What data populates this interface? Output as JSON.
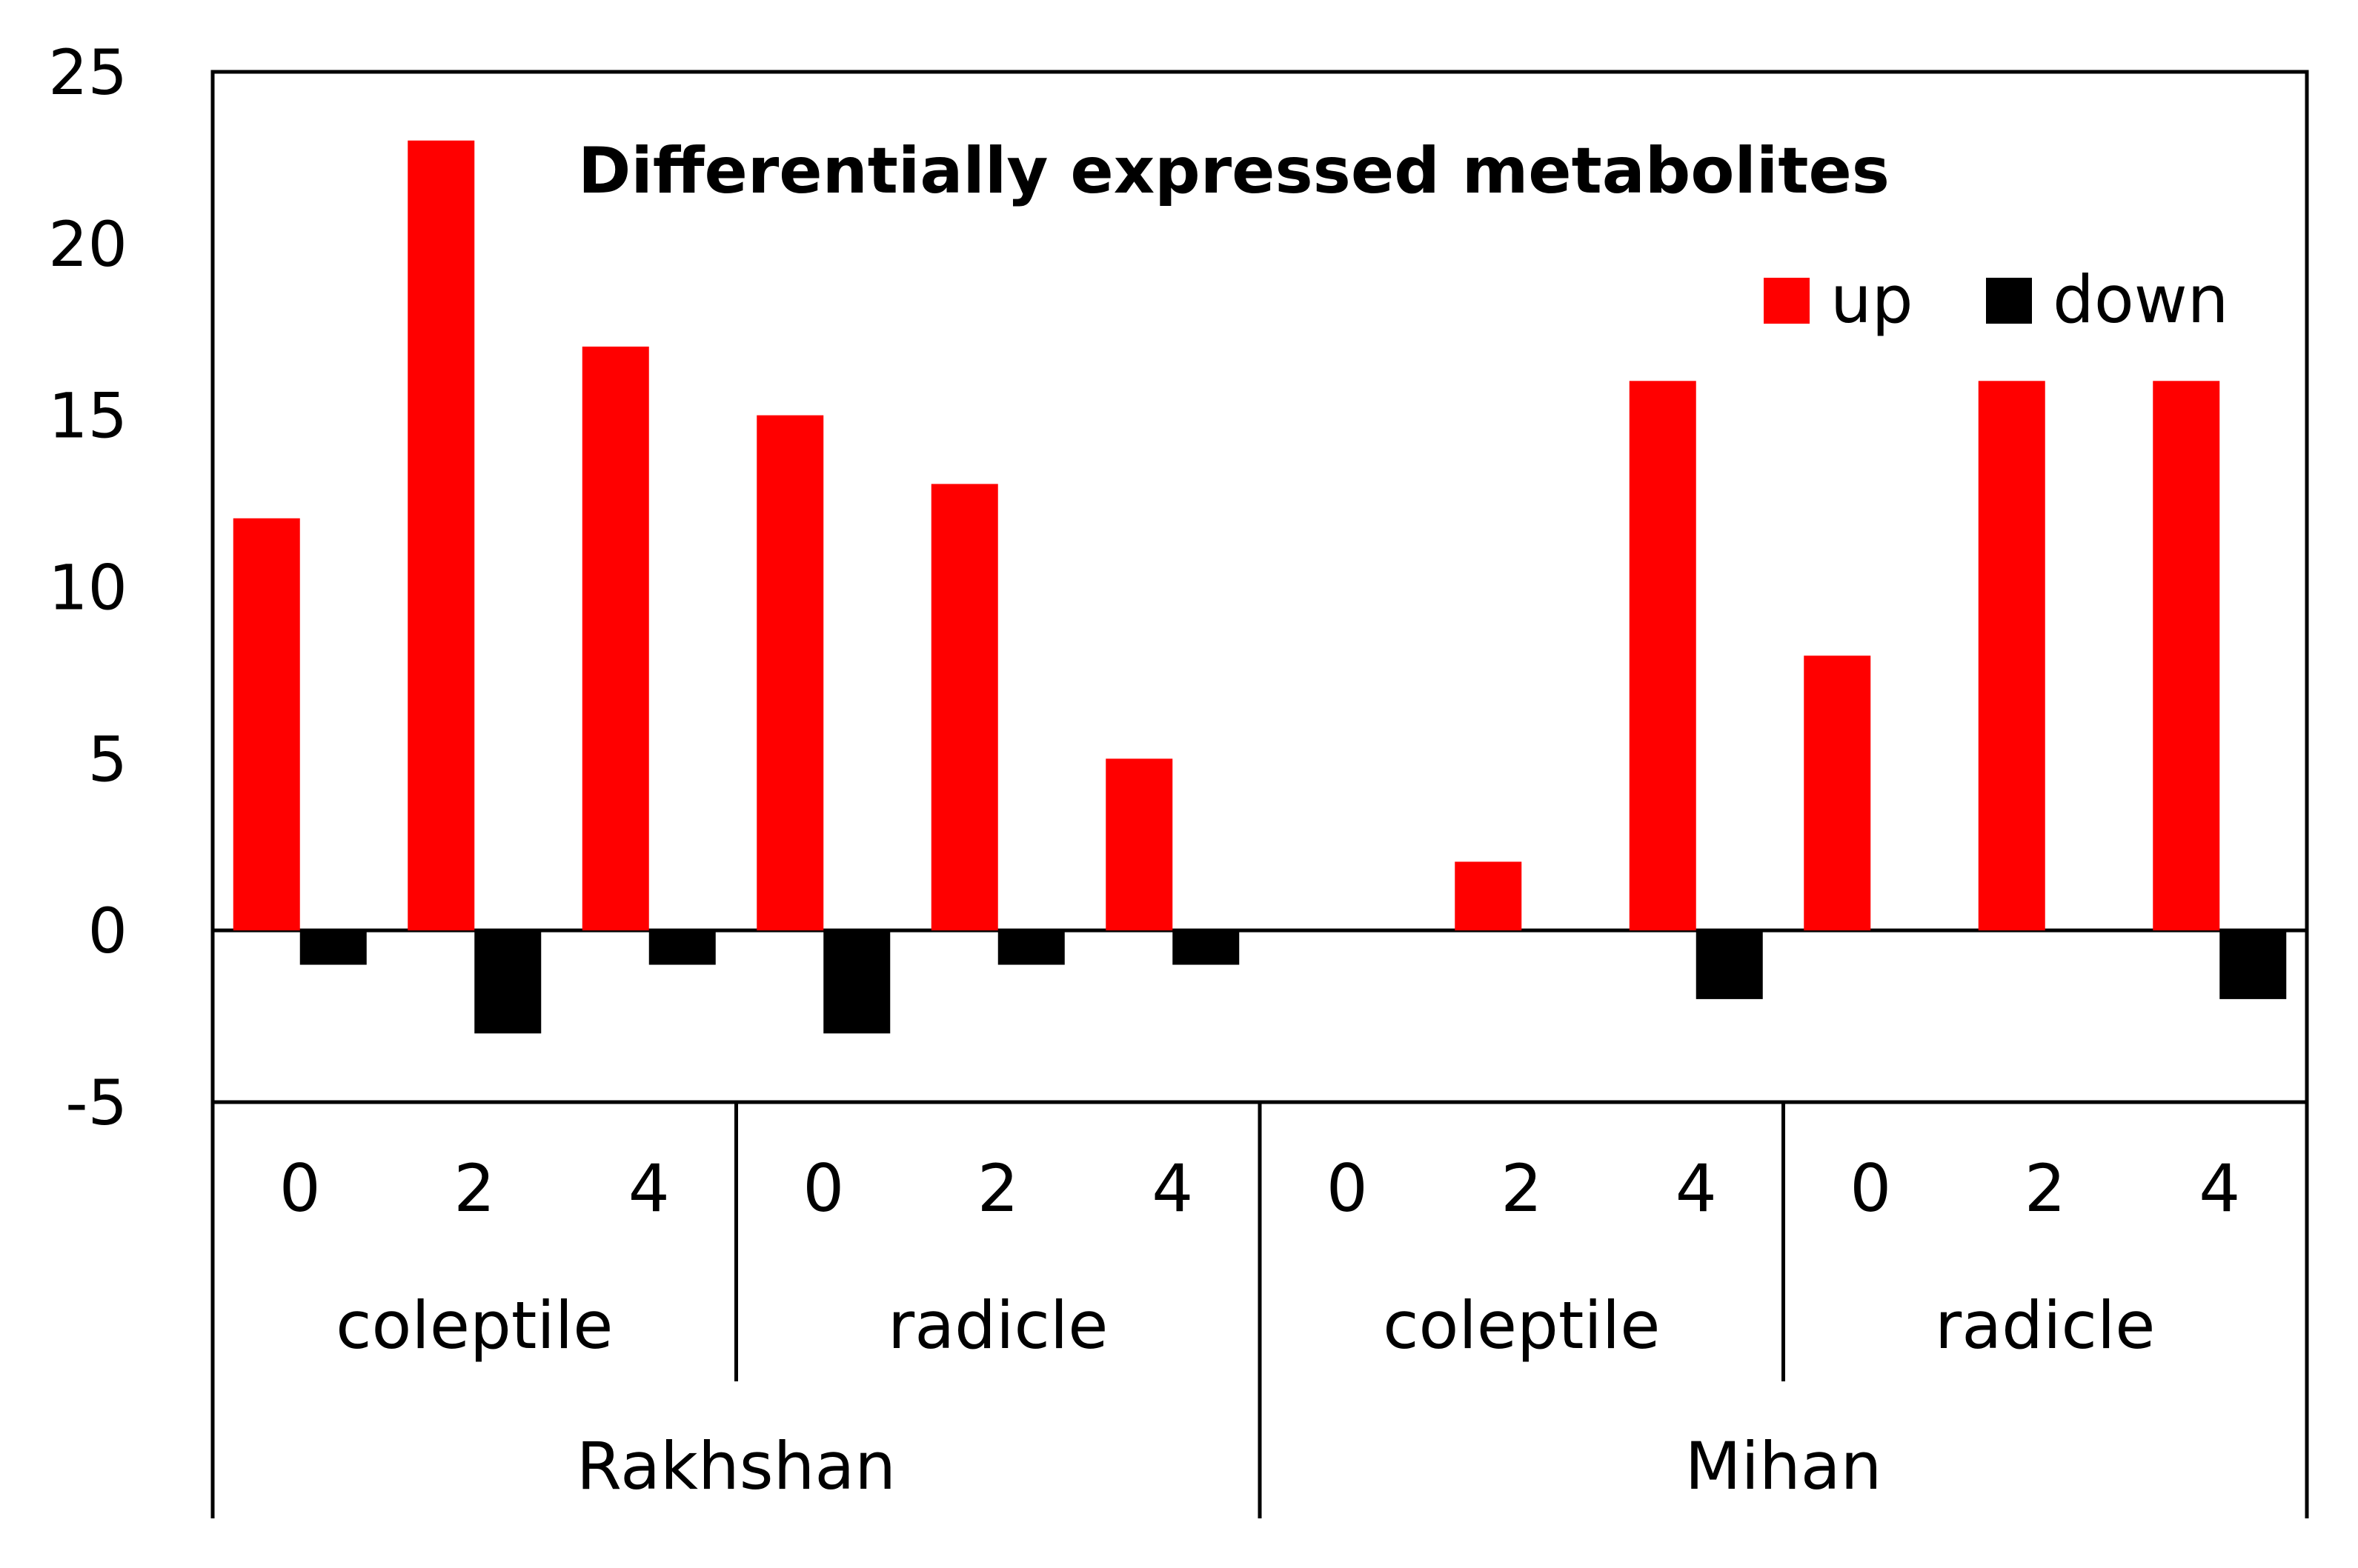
{
  "chart_data": {
    "type": "bar",
    "title": "Differentially expressed metabolites",
    "xlabel": "",
    "ylabel": "",
    "ylim": [
      -5,
      25
    ],
    "yticks": [
      25,
      20,
      15,
      10,
      5,
      0,
      -5
    ],
    "grid": false,
    "legend_position": "top-right",
    "categories": [
      "0",
      "2",
      "4",
      "0",
      "2",
      "4",
      "0",
      "2",
      "4",
      "0",
      "2",
      "4"
    ],
    "tissue_groups": [
      {
        "label": "coleptile",
        "span": 3
      },
      {
        "label": "radicle",
        "span": 3
      },
      {
        "label": "coleptile",
        "span": 3
      },
      {
        "label": "radicle",
        "span": 3
      }
    ],
    "cultivar_groups": [
      {
        "label": "Rakhshan",
        "span": 6
      },
      {
        "label": "Mihan",
        "span": 6
      }
    ],
    "series": [
      {
        "name": "up",
        "color": "#ff0000",
        "values": [
          12,
          23,
          17,
          15,
          13,
          5,
          0,
          2,
          16,
          8,
          16,
          16
        ]
      },
      {
        "name": "down",
        "color": "#000000",
        "values": [
          -1,
          -3,
          -1,
          -3,
          -1,
          -1,
          0,
          0,
          -2,
          0,
          0,
          -2
        ]
      }
    ]
  }
}
